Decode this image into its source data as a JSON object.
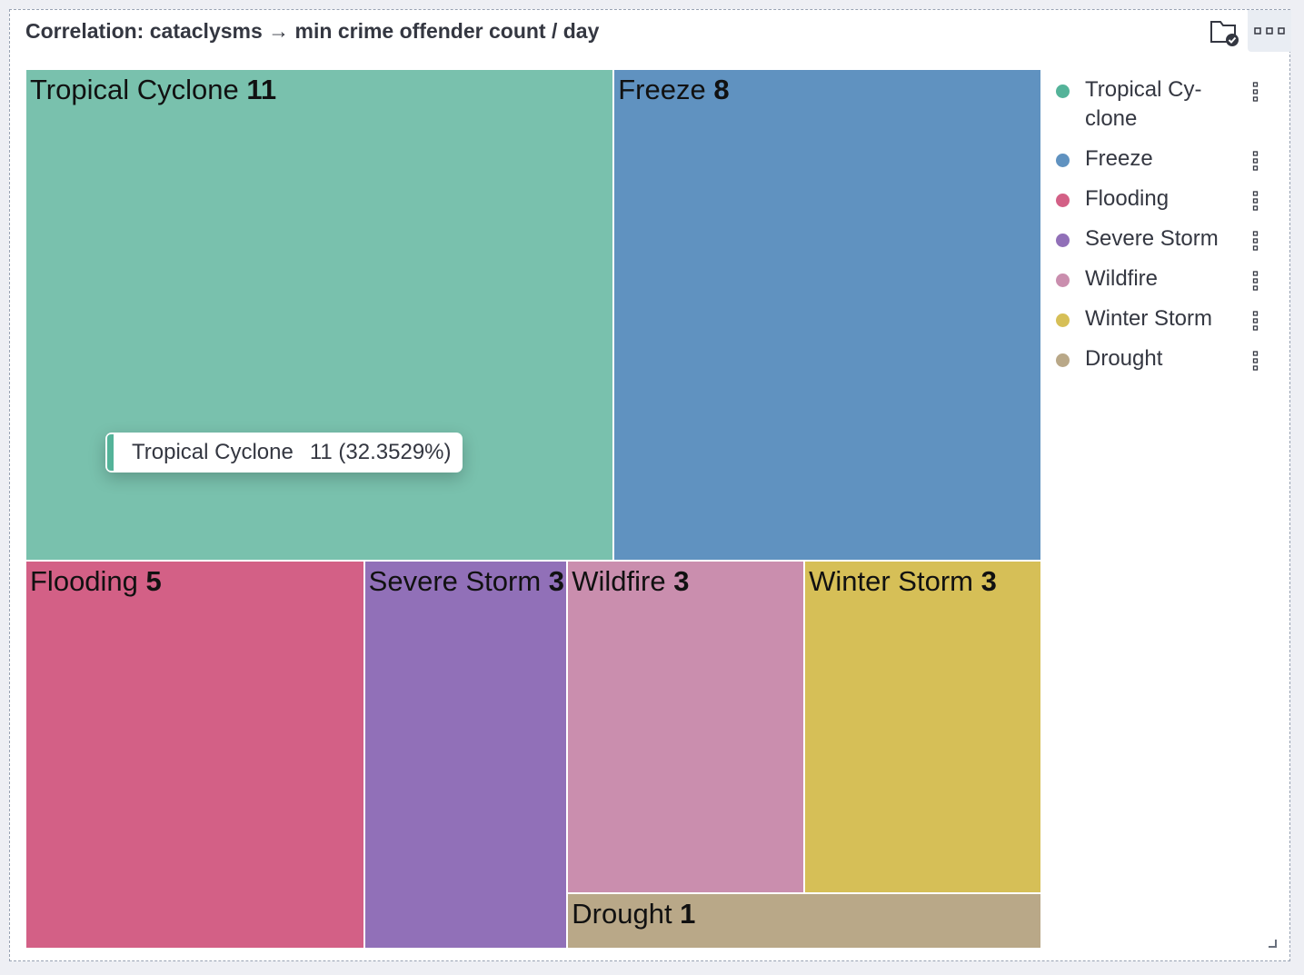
{
  "panel": {
    "title": "Correlation: cataclysms → min crime offender count / day"
  },
  "icons": {
    "folder": "folder-check-icon",
    "more": "more-horizontal-icon",
    "legend_menu": "vertical-dots-icon",
    "resize": "resize-handle-icon"
  },
  "chart_data": {
    "type": "treemap",
    "items": [
      {
        "name": "Tropical Cyclone",
        "value": 11,
        "color": "#79c1ad"
      },
      {
        "name": "Freeze",
        "value": 8,
        "color": "#6092c0"
      },
      {
        "name": "Flooding",
        "value": 5,
        "color": "#d36086"
      },
      {
        "name": "Severe Storm",
        "value": 3,
        "color": "#9170b8"
      },
      {
        "name": "Wildfire",
        "value": 3,
        "color": "#ca8eae"
      },
      {
        "name": "Winter Storm",
        "value": 3,
        "color": "#d6bf57"
      },
      {
        "name": "Drought",
        "value": 1,
        "color": "#b9a888"
      }
    ]
  },
  "legend": {
    "items": [
      {
        "label": "Tropical Cy-clone",
        "color": "#54b399"
      },
      {
        "label": "Freeze",
        "color": "#6092c0"
      },
      {
        "label": "Flooding",
        "color": "#d36086"
      },
      {
        "label": "Severe Storm",
        "color": "#9170b8"
      },
      {
        "label": "Wildfire",
        "color": "#ca8eae"
      },
      {
        "label": "Winter Storm",
        "color": "#d6bf57"
      },
      {
        "label": "Drought",
        "color": "#b9a888"
      }
    ]
  },
  "tooltip": {
    "label": "Tropical Cyclone",
    "value": "11 (32.3529%)",
    "color": "#54b399"
  }
}
